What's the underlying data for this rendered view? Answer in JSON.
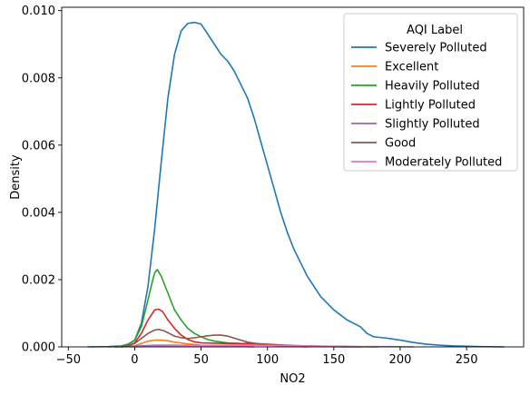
{
  "chart_data": {
    "type": "line",
    "subtype": "kde",
    "title": "",
    "xlabel": "NO2",
    "ylabel": "Density",
    "xlim": [
      -55,
      293
    ],
    "ylim": [
      0,
      0.0101
    ],
    "x_ticks": [
      -50,
      0,
      50,
      100,
      150,
      200,
      250
    ],
    "x_tick_labels": [
      "−50",
      "0",
      "50",
      "100",
      "150",
      "200",
      "250"
    ],
    "y_ticks": [
      0.0,
      0.002,
      0.004,
      0.006,
      0.008,
      0.01
    ],
    "y_tick_labels": [
      "0.000",
      "0.002",
      "0.004",
      "0.006",
      "0.008",
      "0.010"
    ],
    "grid": false,
    "legend": {
      "title": "AQI Label",
      "placement": "top-right"
    },
    "series": [
      {
        "name": "Severely Polluted",
        "color": "#1f77b4",
        "points": [
          [
            -35,
            0
          ],
          [
            -20,
            1e-05
          ],
          [
            -10,
            3e-05
          ],
          [
            -5,
            8e-05
          ],
          [
            0,
            0.0002
          ],
          [
            5,
            0.0007
          ],
          [
            10,
            0.0018
          ],
          [
            15,
            0.0035
          ],
          [
            20,
            0.0055
          ],
          [
            25,
            0.0074
          ],
          [
            30,
            0.0087
          ],
          [
            35,
            0.0094
          ],
          [
            40,
            0.00962
          ],
          [
            45,
            0.00965
          ],
          [
            50,
            0.0096
          ],
          [
            55,
            0.0093
          ],
          [
            60,
            0.009
          ],
          [
            65,
            0.0087
          ],
          [
            70,
            0.0085
          ],
          [
            75,
            0.0082
          ],
          [
            80,
            0.0078
          ],
          [
            85,
            0.0074
          ],
          [
            90,
            0.0068
          ],
          [
            95,
            0.0061
          ],
          [
            100,
            0.0054
          ],
          [
            105,
            0.0047
          ],
          [
            110,
            0.004
          ],
          [
            115,
            0.0034
          ],
          [
            120,
            0.0029
          ],
          [
            125,
            0.0025
          ],
          [
            130,
            0.0021
          ],
          [
            135,
            0.0018
          ],
          [
            140,
            0.0015
          ],
          [
            145,
            0.0013
          ],
          [
            150,
            0.0011
          ],
          [
            155,
            0.00095
          ],
          [
            160,
            0.0008
          ],
          [
            165,
            0.0007
          ],
          [
            170,
            0.0006
          ],
          [
            175,
            0.0004
          ],
          [
            180,
            0.0003
          ],
          [
            190,
            0.00026
          ],
          [
            200,
            0.0002
          ],
          [
            210,
            0.00013
          ],
          [
            220,
            8e-05
          ],
          [
            230,
            5e-05
          ],
          [
            240,
            3e-05
          ],
          [
            250,
            2e-05
          ],
          [
            260,
            1e-05
          ],
          [
            278,
            0
          ]
        ]
      },
      {
        "name": "Excellent",
        "color": "#ff7f0e",
        "points": [
          [
            -10,
            0
          ],
          [
            0,
            3e-05
          ],
          [
            5,
            0.0001
          ],
          [
            10,
            0.00017
          ],
          [
            15,
            0.0002
          ],
          [
            20,
            0.0002
          ],
          [
            25,
            0.00018
          ],
          [
            30,
            0.00014
          ],
          [
            40,
            9e-05
          ],
          [
            50,
            5e-05
          ],
          [
            60,
            3e-05
          ],
          [
            70,
            2e-05
          ],
          [
            80,
            1e-05
          ],
          [
            90,
            0
          ]
        ]
      },
      {
        "name": "Heavily Polluted",
        "color": "#2ca02c",
        "points": [
          [
            -20,
            0
          ],
          [
            -10,
            2e-05
          ],
          [
            -5,
            6e-05
          ],
          [
            0,
            0.0002
          ],
          [
            5,
            0.0006
          ],
          [
            10,
            0.0014
          ],
          [
            13,
            0.0019
          ],
          [
            15,
            0.0022
          ],
          [
            17,
            0.0023
          ],
          [
            20,
            0.0021
          ],
          [
            25,
            0.0016
          ],
          [
            30,
            0.0011
          ],
          [
            35,
            0.0008
          ],
          [
            40,
            0.00055
          ],
          [
            45,
            0.0004
          ],
          [
            50,
            0.0003
          ],
          [
            55,
            0.00022
          ],
          [
            60,
            0.00017
          ],
          [
            70,
            0.00012
          ],
          [
            80,
            0.0001
          ],
          [
            90,
            8e-05
          ],
          [
            100,
            6e-05
          ],
          [
            120,
            4e-05
          ],
          [
            140,
            2e-05
          ],
          [
            160,
            1e-05
          ],
          [
            183,
            0
          ]
        ]
      },
      {
        "name": "Lightly Polluted",
        "color": "#d62728",
        "points": [
          [
            -15,
            0
          ],
          [
            -5,
            2e-05
          ],
          [
            0,
            0.00012
          ],
          [
            5,
            0.0004
          ],
          [
            10,
            0.0008
          ],
          [
            15,
            0.0011
          ],
          [
            18,
            0.00112
          ],
          [
            21,
            0.00105
          ],
          [
            25,
            0.0008
          ],
          [
            30,
            0.00055
          ],
          [
            35,
            0.00035
          ],
          [
            40,
            0.00022
          ],
          [
            45,
            0.00015
          ],
          [
            50,
            0.00012
          ],
          [
            60,
            0.00011
          ],
          [
            70,
            0.0001
          ],
          [
            80,
            0.0001
          ],
          [
            90,
            0.0001
          ],
          [
            100,
            8e-05
          ],
          [
            110,
            6e-05
          ],
          [
            120,
            4e-05
          ],
          [
            130,
            3e-05
          ],
          [
            150,
            1e-05
          ],
          [
            170,
            0
          ]
        ]
      },
      {
        "name": "Slightly Polluted",
        "color": "#9467bd",
        "points": [
          [
            -15,
            0
          ],
          [
            -5,
            1e-05
          ],
          [
            5,
            3e-05
          ],
          [
            15,
            5e-05
          ],
          [
            30,
            5e-05
          ],
          [
            45,
            4e-05
          ],
          [
            60,
            4e-05
          ],
          [
            75,
            5e-05
          ],
          [
            90,
            6e-05
          ],
          [
            105,
            5e-05
          ],
          [
            120,
            3e-05
          ],
          [
            140,
            1e-05
          ],
          [
            160,
            0
          ]
        ]
      },
      {
        "name": "Good",
        "color": "#8c564b",
        "points": [
          [
            -10,
            0
          ],
          [
            -5,
            3e-05
          ],
          [
            0,
            0.0001
          ],
          [
            5,
            0.00025
          ],
          [
            10,
            0.0004
          ],
          [
            15,
            0.0005
          ],
          [
            18,
            0.00052
          ],
          [
            22,
            0.00048
          ],
          [
            26,
            0.0004
          ],
          [
            30,
            0.00032
          ],
          [
            35,
            0.00027
          ],
          [
            40,
            0.00025
          ],
          [
            45,
            0.00027
          ],
          [
            50,
            0.0003
          ],
          [
            55,
            0.00033
          ],
          [
            60,
            0.00035
          ],
          [
            65,
            0.00035
          ],
          [
            70,
            0.00032
          ],
          [
            75,
            0.00026
          ],
          [
            80,
            0.0002
          ],
          [
            85,
            0.00014
          ],
          [
            95,
            8e-05
          ],
          [
            110,
            3e-05
          ],
          [
            130,
            0
          ]
        ]
      },
      {
        "name": "Moderately Polluted",
        "color": "#e377c2",
        "points": [
          [
            0,
            0
          ],
          [
            10,
            1e-05
          ],
          [
            20,
            2e-05
          ],
          [
            35,
            3e-05
          ],
          [
            50,
            4e-05
          ],
          [
            70,
            5e-05
          ],
          [
            90,
            5e-05
          ],
          [
            110,
            4e-05
          ],
          [
            130,
            3e-05
          ],
          [
            150,
            2e-05
          ],
          [
            170,
            1e-05
          ],
          [
            190,
            1e-05
          ],
          [
            210,
            0
          ]
        ]
      }
    ]
  }
}
